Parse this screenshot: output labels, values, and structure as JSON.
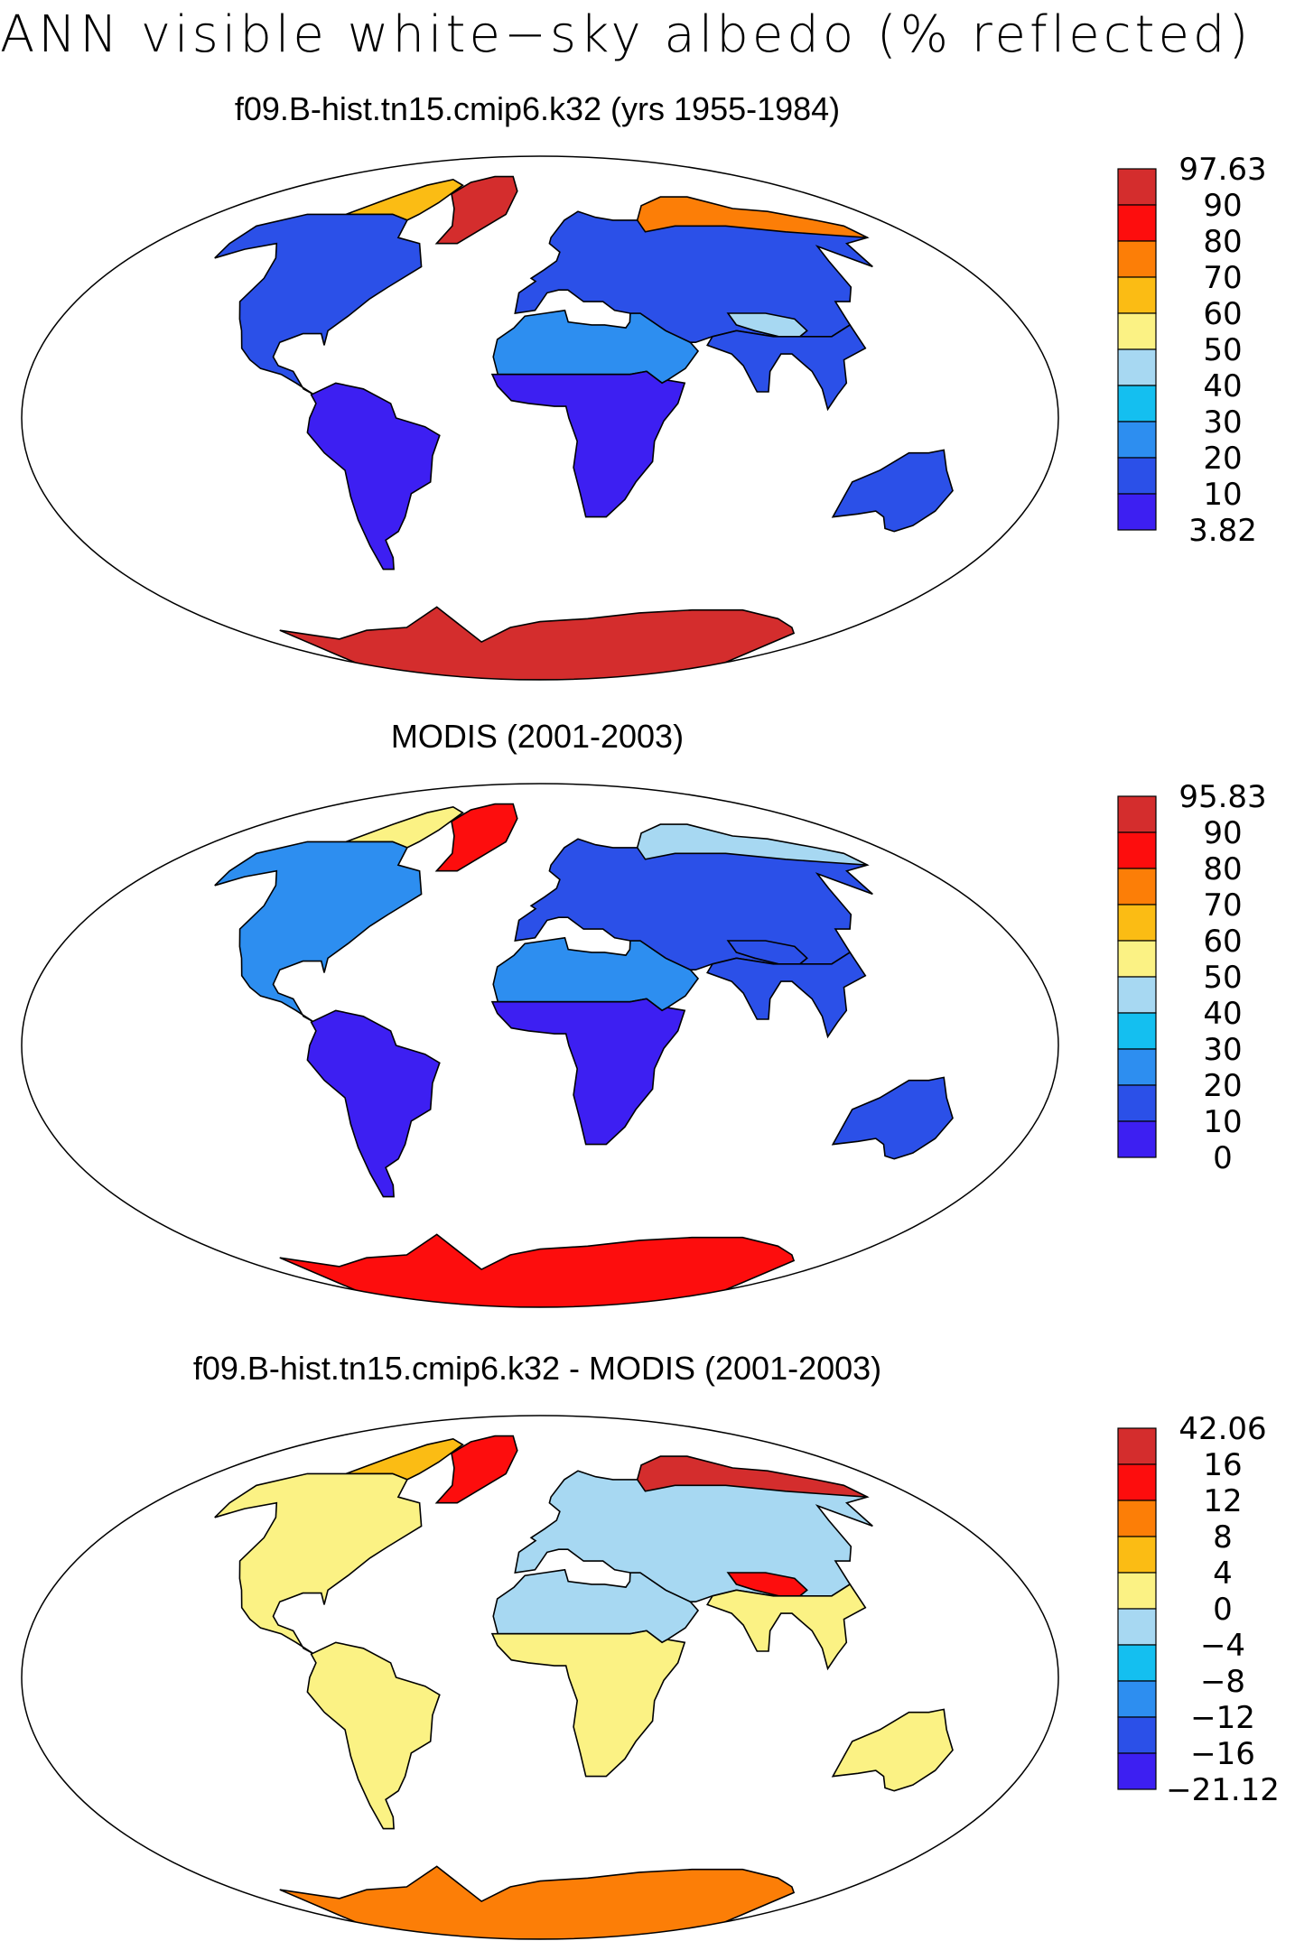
{
  "title": "ANN visible white−sky albedo (% reflected)",
  "colors": {
    "absolute": [
      "#3d1ff2",
      "#2b50e8",
      "#2d8ef0",
      "#14bff0",
      "#a7d8f2",
      "#fbf284",
      "#fbbc14",
      "#fc7e07",
      "#fd0d0d",
      "#d42d2d"
    ],
    "difference": [
      "#3d1ff2",
      "#2b50e8",
      "#2d8ef0",
      "#14bff0",
      "#a7d8f2",
      "#fbf284",
      "#fbbc14",
      "#fc7e07",
      "#fd0d0d",
      "#d42d2d"
    ]
  },
  "chart_data": [
    {
      "type": "heatmap",
      "title": "f09.B-hist.tn15.cmip6.k32 (yrs 1955-1984)",
      "projection": "robinson",
      "colorbar_labels": [
        "97.63",
        "90",
        "80",
        "70",
        "60",
        "50",
        "40",
        "30",
        "20",
        "10",
        "3.82"
      ],
      "colorbar_min": 3.82,
      "colorbar_max": 97.63,
      "regions": [
        {
          "name": "Antarctica",
          "value": 95
        },
        {
          "name": "Greenland",
          "value": 95
        },
        {
          "name": "Canadian Arctic",
          "value": 65
        },
        {
          "name": "North America",
          "value": 18
        },
        {
          "name": "South America",
          "value": 8
        },
        {
          "name": "Sahara/Arabia",
          "value": 25
        },
        {
          "name": "Sub-Saharan Africa",
          "value": 8
        },
        {
          "name": "Eurasia",
          "value": 15
        },
        {
          "name": "Siberian Arctic coast",
          "value": 70
        },
        {
          "name": "Tibet",
          "value": 45
        },
        {
          "name": "South/Southeast Asia",
          "value": 10
        },
        {
          "name": "Australia",
          "value": 15
        }
      ]
    },
    {
      "type": "heatmap",
      "title": "MODIS (2001-2003)",
      "projection": "robinson",
      "colorbar_labels": [
        "95.83",
        "90",
        "80",
        "70",
        "60",
        "50",
        "40",
        "30",
        "20",
        "10",
        "0"
      ],
      "colorbar_min": 0,
      "colorbar_max": 95.83,
      "regions": [
        {
          "name": "Antarctica",
          "value": 85
        },
        {
          "name": "Greenland",
          "value": 85
        },
        {
          "name": "Canadian Arctic",
          "value": 55
        },
        {
          "name": "North America",
          "value": 20
        },
        {
          "name": "South America",
          "value": 5
        },
        {
          "name": "Sahara/Arabia",
          "value": 25
        },
        {
          "name": "Sub-Saharan Africa",
          "value": 7
        },
        {
          "name": "Eurasia",
          "value": 18
        },
        {
          "name": "Siberian Arctic coast",
          "value": 45
        },
        {
          "name": "Tibet",
          "value": 15
        },
        {
          "name": "South/Southeast Asia",
          "value": 10
        },
        {
          "name": "Australia",
          "value": 15
        }
      ]
    },
    {
      "type": "heatmap",
      "title": "f09.B-hist.tn15.cmip6.k32 - MODIS (2001-2003)",
      "projection": "robinson",
      "colorbar_labels": [
        "42.06",
        "16",
        "12",
        "8",
        "4",
        "0",
        "−4",
        "−8",
        "−12",
        "−16",
        "−21.12"
      ],
      "colorbar_min": -21.12,
      "colorbar_max": 42.06,
      "regions": [
        {
          "name": "Antarctica",
          "value": 8
        },
        {
          "name": "Greenland",
          "value": 12
        },
        {
          "name": "Canadian Arctic",
          "value": 6
        },
        {
          "name": "North America",
          "value": 2
        },
        {
          "name": "South America",
          "value": 2
        },
        {
          "name": "Sahara/Arabia",
          "value": -2
        },
        {
          "name": "Sub-Saharan Africa",
          "value": 1
        },
        {
          "name": "Eurasia",
          "value": -2
        },
        {
          "name": "Siberian Arctic coast",
          "value": 20
        },
        {
          "name": "Tibet",
          "value": 14
        },
        {
          "name": "South/Southeast Asia",
          "value": 2
        },
        {
          "name": "Australia",
          "value": 1
        }
      ]
    }
  ]
}
